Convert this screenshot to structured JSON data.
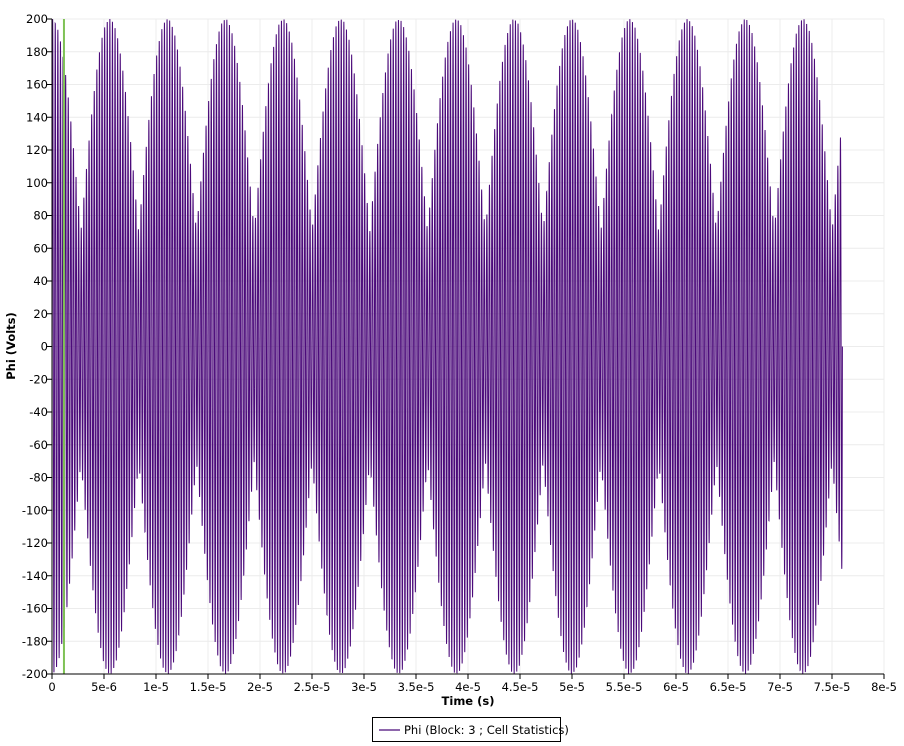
{
  "chart_data": {
    "type": "line",
    "xlabel": "Time (s)",
    "ylabel": "Phi (Volts)",
    "xlim": [
      0,
      8e-05
    ],
    "ylim": [
      -200,
      200
    ],
    "x_ticks": [
      0,
      5e-06,
      1e-05,
      1.5e-05,
      2e-05,
      2.5e-05,
      3e-05,
      3.5e-05,
      4e-05,
      4.5e-05,
      5e-05,
      5.5e-05,
      6e-05,
      6.5e-05,
      7e-05,
      7.5e-05,
      8e-05
    ],
    "x_tick_labels": [
      "0",
      "5e-6",
      "1e-5",
      "1.5e-5",
      "2e-5",
      "2.5e-5",
      "3e-5",
      "3.5e-5",
      "4e-5",
      "4.5e-5",
      "5e-5",
      "5.5e-5",
      "6e-5",
      "6.5e-5",
      "7e-5",
      "7.5e-5",
      "8e-5"
    ],
    "y_ticks": [
      200,
      180,
      160,
      140,
      120,
      100,
      80,
      60,
      40,
      20,
      0,
      -20,
      -40,
      -60,
      -80,
      -100,
      -120,
      -140,
      -160,
      -180,
      -200
    ],
    "y_tick_labels": [
      "200",
      "180",
      "160",
      "140",
      "120",
      "100",
      "80",
      "60",
      "40",
      "20",
      "0",
      "-20",
      "-40",
      "-60",
      "-80",
      "-100",
      "-120",
      "-140",
      "-160",
      "-180",
      "-200"
    ],
    "grid": true,
    "legend_placement": "bottom-center",
    "series": [
      {
        "name": "Phi (Block: 3 ; Cell Statistics)",
        "color": "#4b0a7a",
        "x_range": [
          0,
          7.6e-05
        ],
        "oscillation_frequency_hz": 4000000,
        "peak_amplitude": 200,
        "beat_frequency_hz": 180000,
        "envelope_min_fraction": 0.35
      }
    ],
    "marker_line": {
      "x": 1.15e-06,
      "color": "#7fc256"
    }
  }
}
